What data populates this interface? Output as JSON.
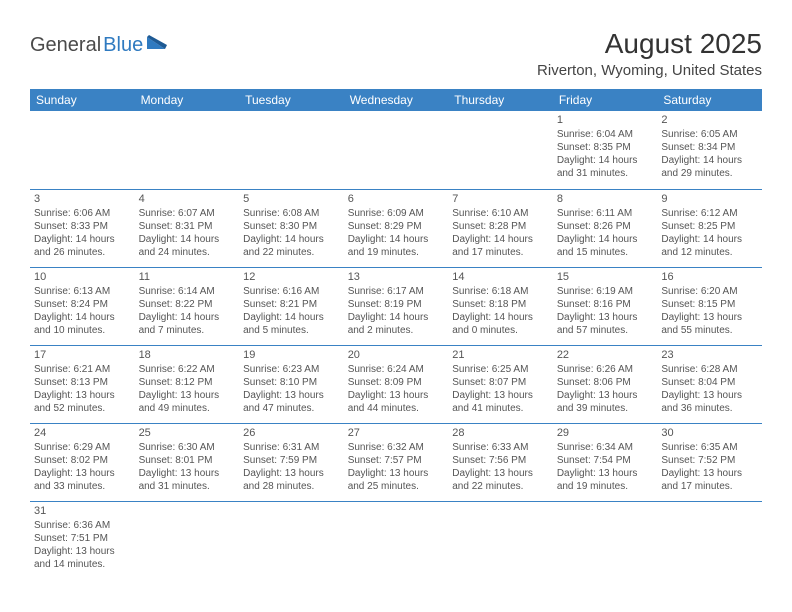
{
  "logo": {
    "part1": "General",
    "part2": "Blue"
  },
  "title": "August 2025",
  "location": "Riverton, Wyoming, United States",
  "colors": {
    "header_bg": "#3a82c4",
    "header_text": "#ffffff",
    "border": "#3a82c4",
    "text": "#555555",
    "logo_gray": "#4a4a4a",
    "logo_blue": "#2f7ac0"
  },
  "dayHeaders": [
    "Sunday",
    "Monday",
    "Tuesday",
    "Wednesday",
    "Thursday",
    "Friday",
    "Saturday"
  ],
  "weeks": [
    [
      null,
      null,
      null,
      null,
      null,
      {
        "n": "1",
        "sr": "Sunrise: 6:04 AM",
        "ss": "Sunset: 8:35 PM",
        "d1": "Daylight: 14 hours",
        "d2": "and 31 minutes."
      },
      {
        "n": "2",
        "sr": "Sunrise: 6:05 AM",
        "ss": "Sunset: 8:34 PM",
        "d1": "Daylight: 14 hours",
        "d2": "and 29 minutes."
      }
    ],
    [
      {
        "n": "3",
        "sr": "Sunrise: 6:06 AM",
        "ss": "Sunset: 8:33 PM",
        "d1": "Daylight: 14 hours",
        "d2": "and 26 minutes."
      },
      {
        "n": "4",
        "sr": "Sunrise: 6:07 AM",
        "ss": "Sunset: 8:31 PM",
        "d1": "Daylight: 14 hours",
        "d2": "and 24 minutes."
      },
      {
        "n": "5",
        "sr": "Sunrise: 6:08 AM",
        "ss": "Sunset: 8:30 PM",
        "d1": "Daylight: 14 hours",
        "d2": "and 22 minutes."
      },
      {
        "n": "6",
        "sr": "Sunrise: 6:09 AM",
        "ss": "Sunset: 8:29 PM",
        "d1": "Daylight: 14 hours",
        "d2": "and 19 minutes."
      },
      {
        "n": "7",
        "sr": "Sunrise: 6:10 AM",
        "ss": "Sunset: 8:28 PM",
        "d1": "Daylight: 14 hours",
        "d2": "and 17 minutes."
      },
      {
        "n": "8",
        "sr": "Sunrise: 6:11 AM",
        "ss": "Sunset: 8:26 PM",
        "d1": "Daylight: 14 hours",
        "d2": "and 15 minutes."
      },
      {
        "n": "9",
        "sr": "Sunrise: 6:12 AM",
        "ss": "Sunset: 8:25 PM",
        "d1": "Daylight: 14 hours",
        "d2": "and 12 minutes."
      }
    ],
    [
      {
        "n": "10",
        "sr": "Sunrise: 6:13 AM",
        "ss": "Sunset: 8:24 PM",
        "d1": "Daylight: 14 hours",
        "d2": "and 10 minutes."
      },
      {
        "n": "11",
        "sr": "Sunrise: 6:14 AM",
        "ss": "Sunset: 8:22 PM",
        "d1": "Daylight: 14 hours",
        "d2": "and 7 minutes."
      },
      {
        "n": "12",
        "sr": "Sunrise: 6:16 AM",
        "ss": "Sunset: 8:21 PM",
        "d1": "Daylight: 14 hours",
        "d2": "and 5 minutes."
      },
      {
        "n": "13",
        "sr": "Sunrise: 6:17 AM",
        "ss": "Sunset: 8:19 PM",
        "d1": "Daylight: 14 hours",
        "d2": "and 2 minutes."
      },
      {
        "n": "14",
        "sr": "Sunrise: 6:18 AM",
        "ss": "Sunset: 8:18 PM",
        "d1": "Daylight: 14 hours",
        "d2": "and 0 minutes."
      },
      {
        "n": "15",
        "sr": "Sunrise: 6:19 AM",
        "ss": "Sunset: 8:16 PM",
        "d1": "Daylight: 13 hours",
        "d2": "and 57 minutes."
      },
      {
        "n": "16",
        "sr": "Sunrise: 6:20 AM",
        "ss": "Sunset: 8:15 PM",
        "d1": "Daylight: 13 hours",
        "d2": "and 55 minutes."
      }
    ],
    [
      {
        "n": "17",
        "sr": "Sunrise: 6:21 AM",
        "ss": "Sunset: 8:13 PM",
        "d1": "Daylight: 13 hours",
        "d2": "and 52 minutes."
      },
      {
        "n": "18",
        "sr": "Sunrise: 6:22 AM",
        "ss": "Sunset: 8:12 PM",
        "d1": "Daylight: 13 hours",
        "d2": "and 49 minutes."
      },
      {
        "n": "19",
        "sr": "Sunrise: 6:23 AM",
        "ss": "Sunset: 8:10 PM",
        "d1": "Daylight: 13 hours",
        "d2": "and 47 minutes."
      },
      {
        "n": "20",
        "sr": "Sunrise: 6:24 AM",
        "ss": "Sunset: 8:09 PM",
        "d1": "Daylight: 13 hours",
        "d2": "and 44 minutes."
      },
      {
        "n": "21",
        "sr": "Sunrise: 6:25 AM",
        "ss": "Sunset: 8:07 PM",
        "d1": "Daylight: 13 hours",
        "d2": "and 41 minutes."
      },
      {
        "n": "22",
        "sr": "Sunrise: 6:26 AM",
        "ss": "Sunset: 8:06 PM",
        "d1": "Daylight: 13 hours",
        "d2": "and 39 minutes."
      },
      {
        "n": "23",
        "sr": "Sunrise: 6:28 AM",
        "ss": "Sunset: 8:04 PM",
        "d1": "Daylight: 13 hours",
        "d2": "and 36 minutes."
      }
    ],
    [
      {
        "n": "24",
        "sr": "Sunrise: 6:29 AM",
        "ss": "Sunset: 8:02 PM",
        "d1": "Daylight: 13 hours",
        "d2": "and 33 minutes."
      },
      {
        "n": "25",
        "sr": "Sunrise: 6:30 AM",
        "ss": "Sunset: 8:01 PM",
        "d1": "Daylight: 13 hours",
        "d2": "and 31 minutes."
      },
      {
        "n": "26",
        "sr": "Sunrise: 6:31 AM",
        "ss": "Sunset: 7:59 PM",
        "d1": "Daylight: 13 hours",
        "d2": "and 28 minutes."
      },
      {
        "n": "27",
        "sr": "Sunrise: 6:32 AM",
        "ss": "Sunset: 7:57 PM",
        "d1": "Daylight: 13 hours",
        "d2": "and 25 minutes."
      },
      {
        "n": "28",
        "sr": "Sunrise: 6:33 AM",
        "ss": "Sunset: 7:56 PM",
        "d1": "Daylight: 13 hours",
        "d2": "and 22 minutes."
      },
      {
        "n": "29",
        "sr": "Sunrise: 6:34 AM",
        "ss": "Sunset: 7:54 PM",
        "d1": "Daylight: 13 hours",
        "d2": "and 19 minutes."
      },
      {
        "n": "30",
        "sr": "Sunrise: 6:35 AM",
        "ss": "Sunset: 7:52 PM",
        "d1": "Daylight: 13 hours",
        "d2": "and 17 minutes."
      }
    ],
    [
      {
        "n": "31",
        "sr": "Sunrise: 6:36 AM",
        "ss": "Sunset: 7:51 PM",
        "d1": "Daylight: 13 hours",
        "d2": "and 14 minutes."
      },
      null,
      null,
      null,
      null,
      null,
      null
    ]
  ]
}
